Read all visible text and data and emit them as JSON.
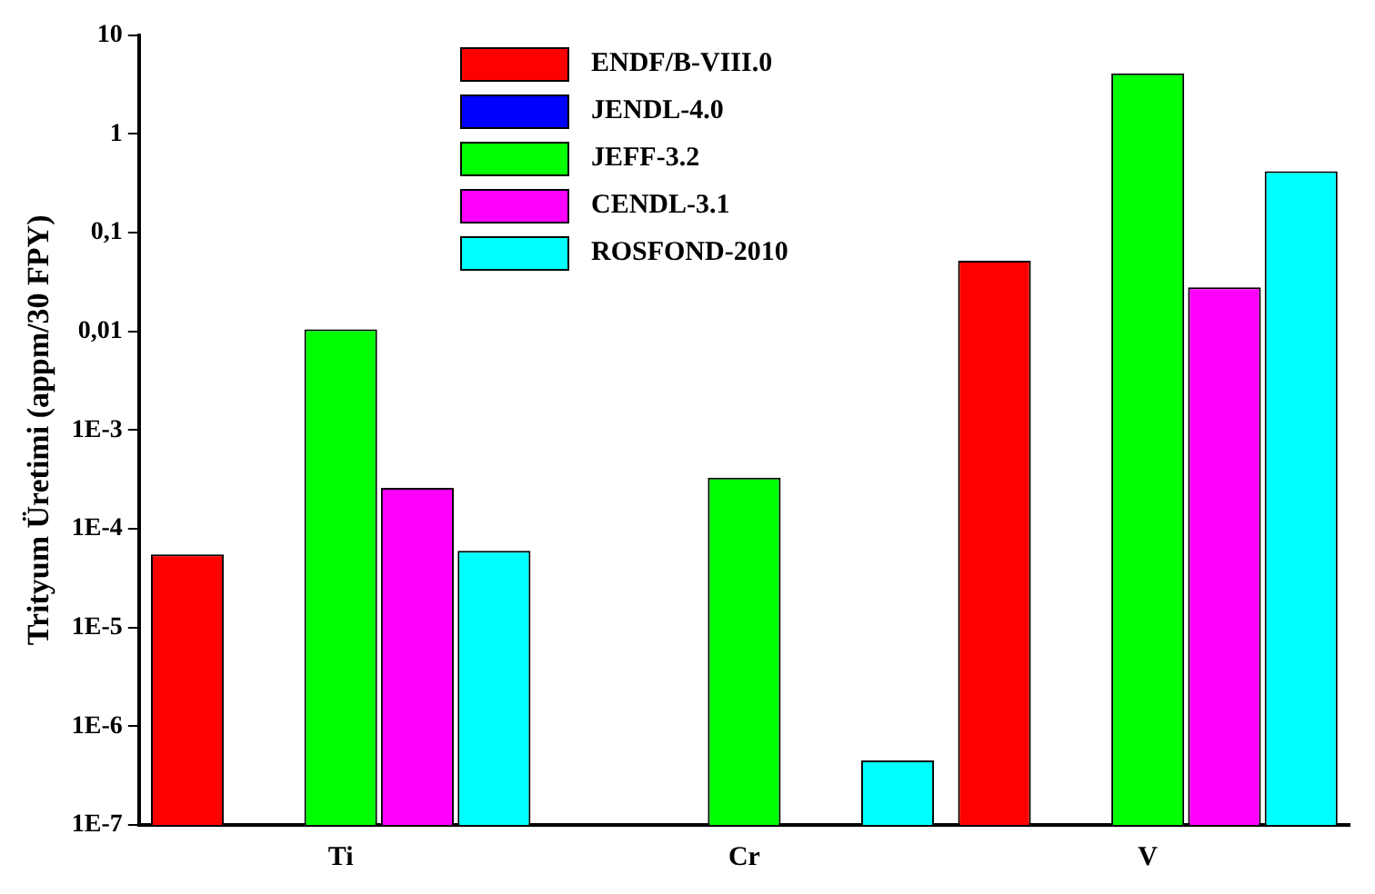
{
  "chart_data": {
    "type": "bar",
    "ylabel": "Trityum Üretimi (appm/30 FPY)",
    "categories": [
      "Ti",
      "Cr",
      "V"
    ],
    "series": [
      {
        "name": "ENDF/B-VIII.0",
        "color": "#ff0000",
        "values": [
          5.5e-05,
          null,
          0.052
        ]
      },
      {
        "name": "JENDL-4.0",
        "color": "#0000ff",
        "values": [
          null,
          null,
          null
        ]
      },
      {
        "name": "JEFF-3.2",
        "color": "#00ff00",
        "values": [
          0.0105,
          0.00033,
          4.1
        ]
      },
      {
        "name": "CENDL-3.1",
        "color": "#ff00ff",
        "values": [
          0.00026,
          null,
          0.028
        ]
      },
      {
        "name": "ROSFOND-2010",
        "color": "#00ffff",
        "values": [
          6e-05,
          4.5e-07,
          0.42
        ]
      }
    ],
    "log": "y",
    "ylim": [
      1e-07,
      10
    ],
    "yticks": [
      {
        "value": 1e-07,
        "label": "1E-7"
      },
      {
        "value": 1e-06,
        "label": "1E-6"
      },
      {
        "value": 1e-05,
        "label": "1E-5"
      },
      {
        "value": 0.0001,
        "label": "1E-4"
      },
      {
        "value": 0.001,
        "label": "1E-3"
      },
      {
        "value": 0.01,
        "label": "0,01"
      },
      {
        "value": 0.1,
        "label": "0,1"
      },
      1,
      10
    ],
    "grid": false,
    "legend": "top left"
  }
}
